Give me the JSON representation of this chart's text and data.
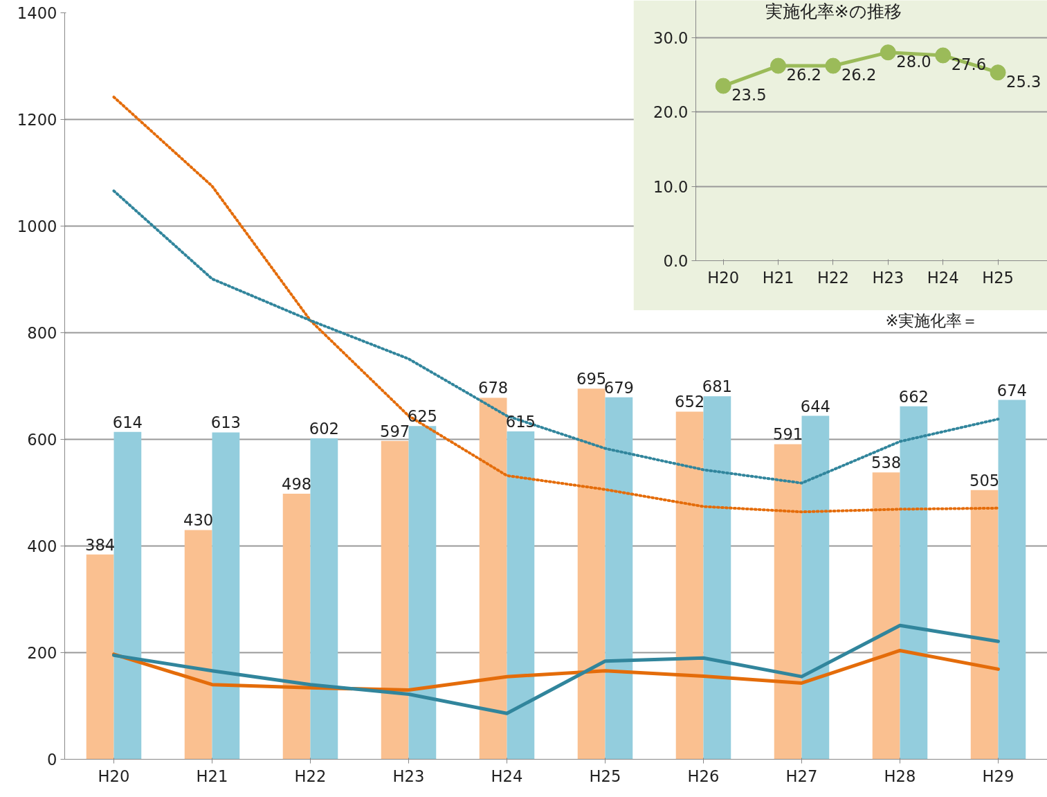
{
  "chart_data": [
    {
      "type": "bar",
      "categories": [
        "H20",
        "H21",
        "H22",
        "H23",
        "H24",
        "H25",
        "H26",
        "H27",
        "H28",
        "H29"
      ],
      "ylim": [
        0,
        1400
      ],
      "yticks": [
        0,
        200,
        400,
        600,
        800,
        1000,
        1200,
        1400
      ],
      "grid": "y",
      "annotations": [
        "※実施化率＝"
      ],
      "series": [
        {
          "type": "bar",
          "color": "#fac090",
          "values": [
            384,
            430,
            498,
            597,
            678,
            695,
            652,
            591,
            538,
            505
          ],
          "value_labels": [
            "384",
            "430",
            "498",
            "597",
            "678",
            "695",
            "652",
            "591",
            "538",
            "505"
          ]
        },
        {
          "type": "bar",
          "color": "#93cddd",
          "values": [
            614,
            613,
            602,
            625,
            615,
            679,
            681,
            644,
            662,
            674
          ],
          "value_labels": [
            "614",
            "613",
            "602",
            "625",
            "615",
            "679",
            "681",
            "644",
            "662",
            "674"
          ]
        },
        {
          "type": "line",
          "color": "#e46c0a",
          "values": [
            197,
            140,
            134,
            130,
            155,
            166,
            156,
            143,
            204,
            169
          ]
        },
        {
          "type": "line",
          "color": "#31859c",
          "values": [
            195,
            166,
            140,
            122,
            86,
            184,
            190,
            155,
            251,
            221
          ]
        },
        {
          "type": "line",
          "color": "#e46c0a",
          "line_style": "dotted",
          "values": [
            1242,
            1075,
            823,
            644,
            532,
            506,
            474,
            464,
            469,
            471
          ]
        },
        {
          "type": "line",
          "color": "#31859c",
          "line_style": "dotted",
          "values": [
            1066,
            901,
            823,
            751,
            644,
            583,
            543,
            518,
            596,
            638
          ]
        }
      ]
    },
    {
      "type": "line",
      "title": "実施化率※の推移",
      "categories": [
        "H20",
        "H21",
        "H22",
        "H23",
        "H24",
        "H25"
      ],
      "ylim": [
        0,
        35
      ],
      "yticks": [
        {
          "value": 0,
          "label": "0.0"
        },
        {
          "value": 10,
          "label": "10.0"
        },
        {
          "value": 20,
          "label": "20.0"
        },
        {
          "value": 30,
          "label": "30.0"
        }
      ],
      "grid": "y",
      "marker": "circle",
      "series": [
        {
          "color": "#9bbb59",
          "values": [
            23.5,
            26.2,
            26.2,
            28.0,
            27.6,
            25.3
          ],
          "value_labels": [
            "23.5",
            "26.2",
            "26.2",
            "28.0",
            "27.6",
            "25.3"
          ]
        }
      ]
    }
  ]
}
